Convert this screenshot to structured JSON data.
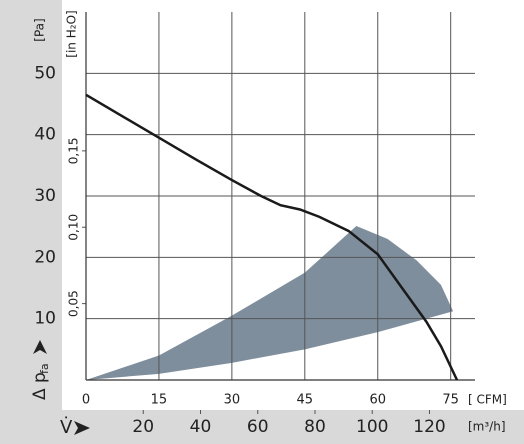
{
  "chart_data": {
    "type": "line",
    "y_unit": "[Pa]",
    "y2_unit": "[in H₂O]",
    "x_unit": "[ CFM]",
    "x2_unit": "[m³/h]",
    "y_label": "Δ p",
    "y_label_sub": "fa",
    "x2_label": "V̇",
    "xlim": [
      0,
      80
    ],
    "xticks": [
      0,
      15,
      30,
      45,
      60,
      75
    ],
    "x2lim": [
      0,
      135.9
    ],
    "x2ticks": [
      20,
      40,
      60,
      80,
      100,
      120
    ],
    "ylim": [
      0,
      60
    ],
    "yticks": [
      10,
      20,
      30,
      40,
      50
    ],
    "y2lim": [
      0,
      0.2409
    ],
    "y2ticks": [
      {
        "value": 0.05,
        "label": "0,05"
      },
      {
        "value": 0.1,
        "label": "0,10"
      },
      {
        "value": 0.15,
        "label": "0,15"
      }
    ],
    "grid": true,
    "series": [
      {
        "color": "#1a1a1a",
        "x": [
          0,
          7.5,
          15,
          22.5,
          30,
          36,
          40,
          44,
          48,
          54,
          60,
          65,
          70,
          73,
          76.3
        ],
        "values": [
          46.5,
          43,
          39.5,
          36,
          32.6,
          30,
          28.5,
          27.8,
          26.6,
          24.3,
          20.5,
          15,
          9.5,
          5.5,
          0
        ]
      }
    ],
    "region": {
      "color": "#7f8e9c",
      "x": [
        0,
        15,
        30,
        45,
        55.6,
        62,
        68,
        73,
        75.5,
        60,
        45,
        30,
        15,
        0
      ],
      "values": [
        0,
        4,
        10.5,
        17.5,
        25.1,
        23,
        19.5,
        15.5,
        11.2,
        7.8,
        5,
        2.8,
        1,
        0
      ]
    }
  }
}
